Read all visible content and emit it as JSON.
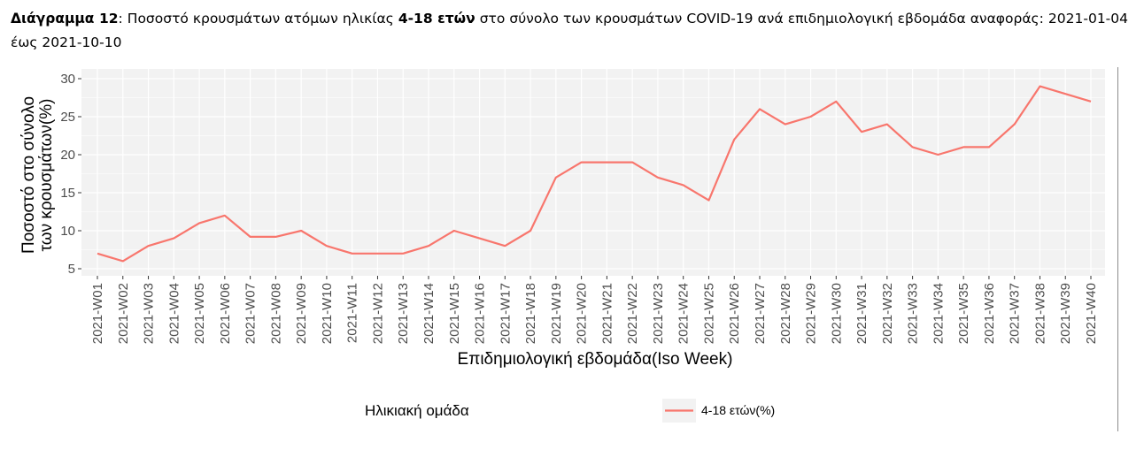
{
  "caption": {
    "label": "Διάγραμμα 12",
    "text1": ": Ποσοστό κρουσμάτων ατόμων ηλικίας ",
    "bold_age": "4-18 ετών",
    "text2": " στο σύνολο των κρουσμάτων COVID-19 ανά επιδημιολογική εβδομάδα αναφοράς: 2021-01-04 έως 2021-10-10"
  },
  "colors": {
    "series": "#f8766d",
    "panel": "#f2f2f2",
    "grid": "#ffffff"
  },
  "chart_data": {
    "type": "line",
    "xlabel": "Επιδημιολογική εβδομάδα(Iso Week)",
    "ylabel_line1": "Ποσοστό στο σύνολο",
    "ylabel_line2": "των κρουσμάτων(%)",
    "ylim": [
      5,
      30
    ],
    "yticks": [
      5,
      10,
      15,
      20,
      25,
      30
    ],
    "grid": true,
    "legend_position": "bottom",
    "legend_title": "Ηλικιακή ομάδα",
    "categories": [
      "2021-W01",
      "2021-W02",
      "2021-W03",
      "2021-W04",
      "2021-W05",
      "2021-W06",
      "2021-W07",
      "2021-W08",
      "2021-W09",
      "2021-W10",
      "2021-W11",
      "2021-W12",
      "2021-W13",
      "2021-W14",
      "2021-W15",
      "2021-W16",
      "2021-W17",
      "2021-W18",
      "2021-W19",
      "2021-W20",
      "2021-W21",
      "2021-W22",
      "2021-W23",
      "2021-W24",
      "2021-W25",
      "2021-W26",
      "2021-W27",
      "2021-W28",
      "2021-W29",
      "2021-W30",
      "2021-W31",
      "2021-W32",
      "2021-W33",
      "2021-W34",
      "2021-W35",
      "2021-W36",
      "2021-W37",
      "2021-W38",
      "2021-W39",
      "2021-W40"
    ],
    "series": [
      {
        "name": "4-18 ετών(%)",
        "values": [
          7,
          6,
          8,
          9,
          11,
          12,
          9.2,
          9.2,
          10,
          8,
          7,
          7,
          7,
          8,
          10,
          9,
          8,
          10,
          17,
          19,
          19,
          19,
          17,
          16,
          14,
          22,
          26,
          24,
          25,
          27,
          23,
          24,
          21,
          20,
          21,
          21,
          24,
          29,
          28,
          27
        ]
      }
    ]
  }
}
